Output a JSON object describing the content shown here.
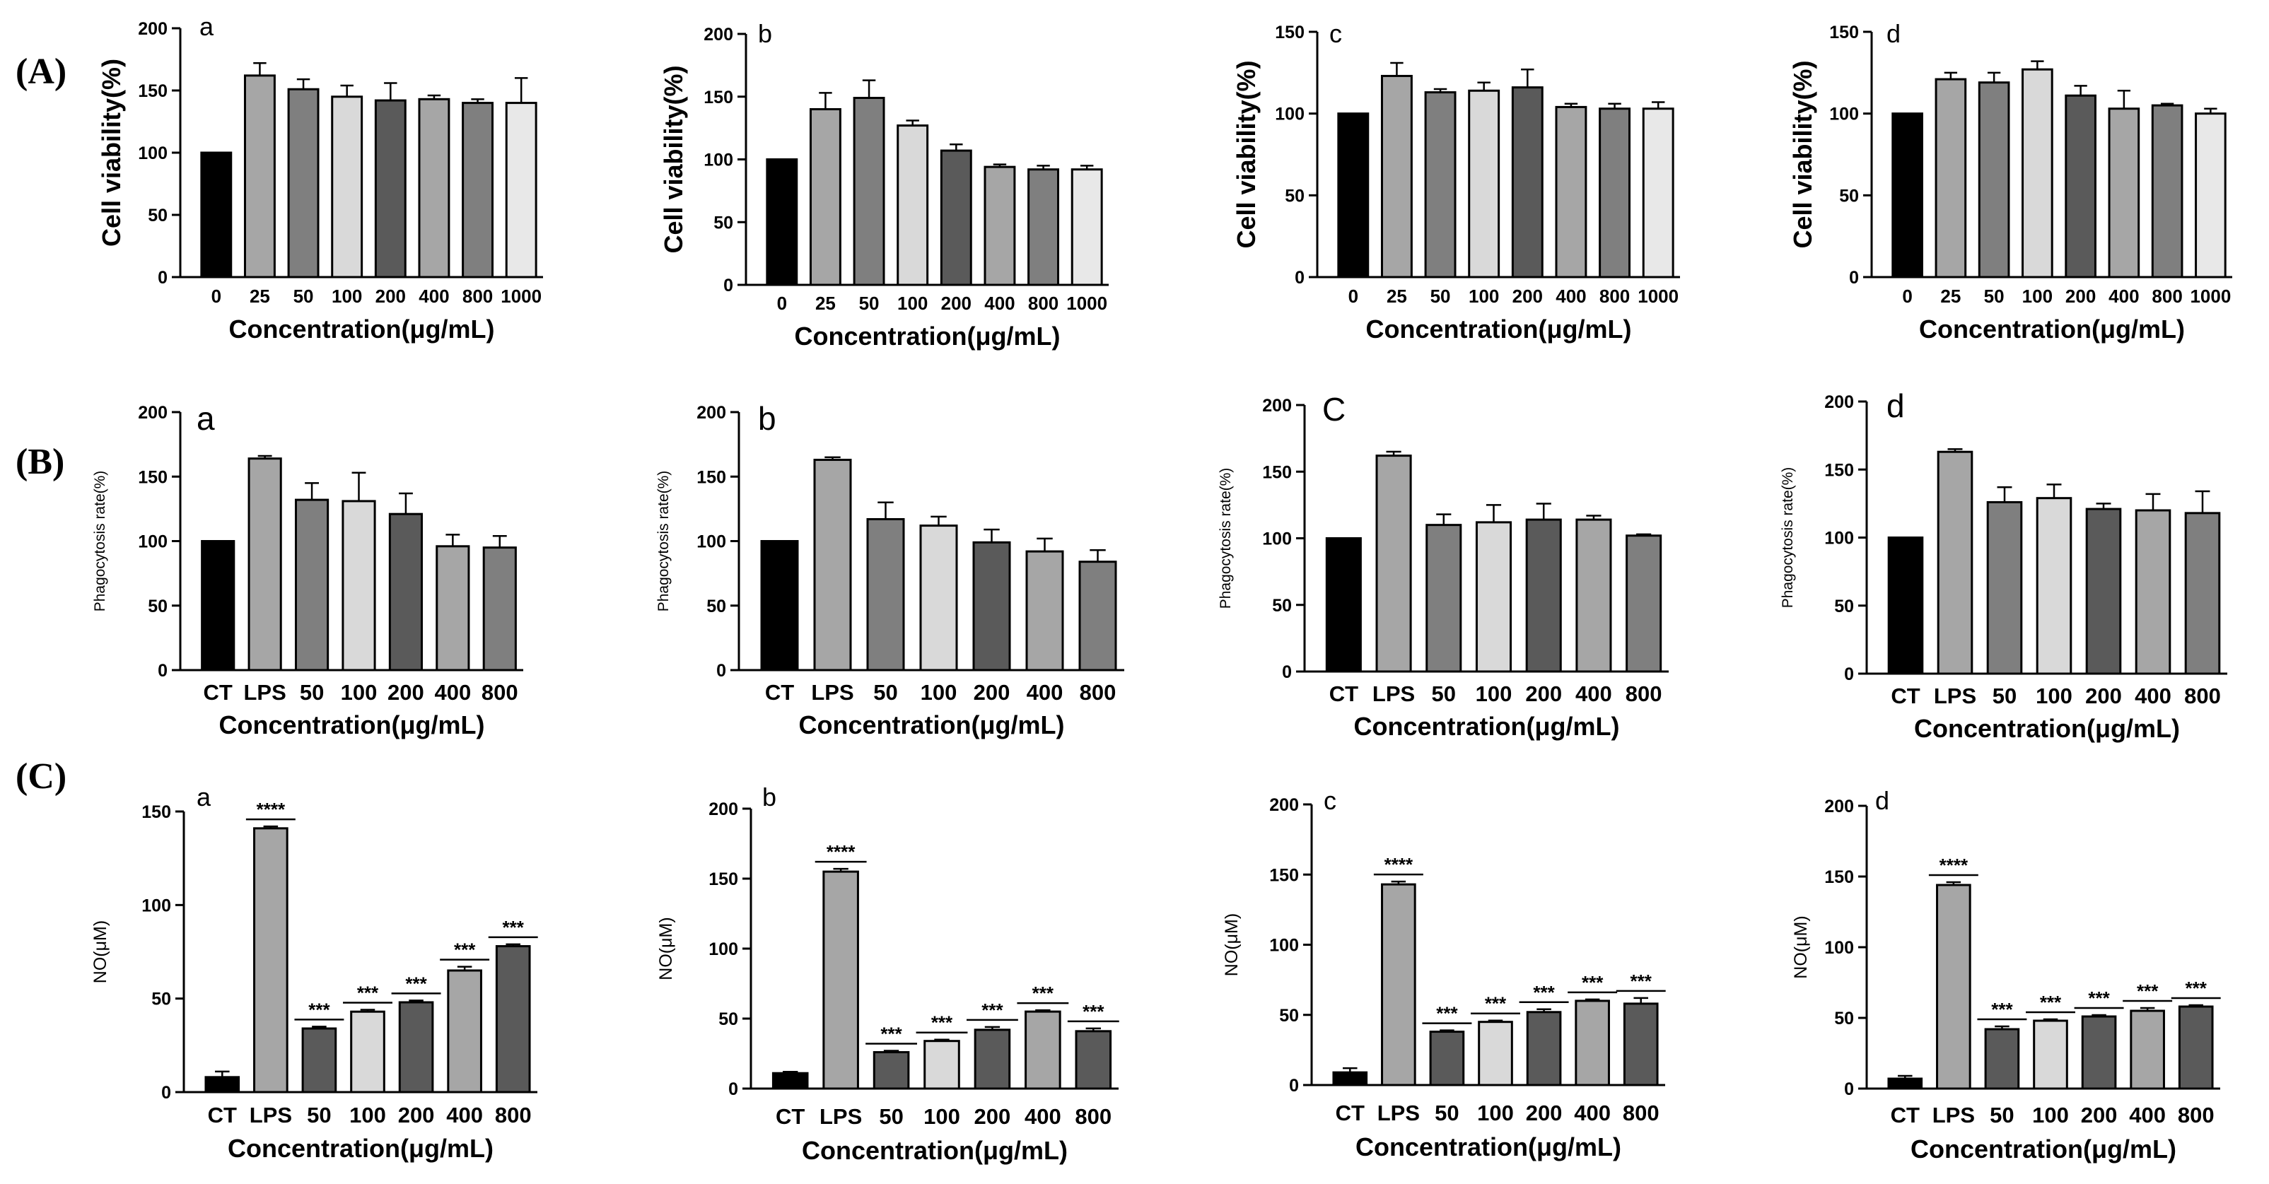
{
  "figure": {
    "row_labels": [
      "(A)",
      "(B)",
      "(C)"
    ]
  },
  "colors": {
    "black": "#000000",
    "gray_mid": "#a6a6a6",
    "gray_dark": "#7f7f7f",
    "gray_light": "#d9d9d9",
    "gray_darker": "#5a5a5a",
    "gray_pale": "#e8e8e8"
  },
  "chart_data": [
    {
      "id": "A-a",
      "type": "bar",
      "panel_label": "a",
      "ylabel": "Cell viability(%)",
      "xlabel": "Concentration(μg/mL)",
      "ylim": [
        0,
        200
      ],
      "yticks": [
        0,
        50,
        100,
        150,
        200
      ],
      "categories": [
        "0",
        "25",
        "50",
        "100",
        "200",
        "400",
        "800",
        "1000"
      ],
      "values": [
        100,
        162,
        151,
        145,
        142,
        143,
        140,
        140
      ],
      "errors": [
        0,
        10,
        8,
        9,
        14,
        3,
        3,
        20
      ],
      "colors": [
        "#000000",
        "#a6a6a6",
        "#7f7f7f",
        "#d9d9d9",
        "#5a5a5a",
        "#a6a6a6",
        "#7f7f7f",
        "#e8e8e8"
      ],
      "significance": []
    },
    {
      "id": "A-b",
      "type": "bar",
      "panel_label": "b",
      "ylabel": "Cell viability(%)",
      "xlabel": "Concentration(μg/mL)",
      "ylim": [
        0,
        200
      ],
      "yticks": [
        0,
        50,
        100,
        150,
        200
      ],
      "categories": [
        "0",
        "25",
        "50",
        "100",
        "200",
        "400",
        "800",
        "1000"
      ],
      "values": [
        100,
        140,
        149,
        127,
        107,
        94,
        92,
        92
      ],
      "errors": [
        0,
        13,
        14,
        4,
        5,
        2,
        3,
        3
      ],
      "colors": [
        "#000000",
        "#a6a6a6",
        "#7f7f7f",
        "#d9d9d9",
        "#5a5a5a",
        "#a6a6a6",
        "#7f7f7f",
        "#e8e8e8"
      ],
      "significance": []
    },
    {
      "id": "A-c",
      "type": "bar",
      "panel_label": "c",
      "ylabel": "Cell viability(%)",
      "xlabel": "Concentration(μg/mL)",
      "ylim": [
        0,
        150
      ],
      "yticks": [
        0,
        50,
        100,
        150
      ],
      "categories": [
        "0",
        "25",
        "50",
        "100",
        "200",
        "400",
        "800",
        "1000"
      ],
      "values": [
        100,
        123,
        113,
        114,
        116,
        104,
        103,
        103
      ],
      "errors": [
        0,
        8,
        2,
        5,
        11,
        2,
        3,
        4
      ],
      "colors": [
        "#000000",
        "#a6a6a6",
        "#7f7f7f",
        "#d9d9d9",
        "#5a5a5a",
        "#a6a6a6",
        "#7f7f7f",
        "#e8e8e8"
      ],
      "significance": []
    },
    {
      "id": "A-d",
      "type": "bar",
      "panel_label": "d",
      "ylabel": "Cell viability(%)",
      "xlabel": "Concentration(μg/mL)",
      "ylim": [
        0,
        150
      ],
      "yticks": [
        0,
        50,
        100,
        150
      ],
      "categories": [
        "0",
        "25",
        "50",
        "100",
        "200",
        "400",
        "800",
        "1000"
      ],
      "values": [
        100,
        121,
        119,
        127,
        111,
        103,
        105,
        100
      ],
      "errors": [
        0,
        4,
        6,
        5,
        6,
        11,
        1,
        3
      ],
      "colors": [
        "#000000",
        "#a6a6a6",
        "#7f7f7f",
        "#d9d9d9",
        "#5a5a5a",
        "#a6a6a6",
        "#7f7f7f",
        "#e8e8e8"
      ],
      "significance": []
    },
    {
      "id": "B-a",
      "type": "bar",
      "panel_label": "a",
      "ylabel": "Phagocytosis rate(%)",
      "xlabel": "Concentration(μg/mL)",
      "ylim": [
        0,
        200
      ],
      "yticks": [
        0,
        50,
        100,
        150,
        200
      ],
      "categories": [
        "CT",
        "LPS",
        "50",
        "100",
        "200",
        "400",
        "800"
      ],
      "values": [
        100,
        164,
        132,
        131,
        121,
        96,
        95
      ],
      "errors": [
        0,
        2,
        13,
        22,
        16,
        9,
        9
      ],
      "colors": [
        "#000000",
        "#a6a6a6",
        "#7f7f7f",
        "#d9d9d9",
        "#5a5a5a",
        "#a6a6a6",
        "#7f7f7f"
      ],
      "significance": []
    },
    {
      "id": "B-b",
      "type": "bar",
      "panel_label": "b",
      "ylabel": "Phagocytosis rate(%)",
      "xlabel": "Concentration(μg/mL)",
      "ylim": [
        0,
        200
      ],
      "yticks": [
        0,
        50,
        100,
        150,
        200
      ],
      "categories": [
        "CT",
        "LPS",
        "50",
        "100",
        "200",
        "400",
        "800"
      ],
      "values": [
        100,
        163,
        117,
        112,
        99,
        92,
        84
      ],
      "errors": [
        0,
        2,
        13,
        7,
        10,
        10,
        9
      ],
      "colors": [
        "#000000",
        "#a6a6a6",
        "#7f7f7f",
        "#d9d9d9",
        "#5a5a5a",
        "#a6a6a6",
        "#7f7f7f"
      ],
      "significance": []
    },
    {
      "id": "B-c",
      "type": "bar",
      "panel_label": "C",
      "ylabel": "Phagocytosis rate(%)",
      "xlabel": "Concentration(μg/mL)",
      "ylim": [
        0,
        200
      ],
      "yticks": [
        0,
        50,
        100,
        150,
        200
      ],
      "categories": [
        "CT",
        "LPS",
        "50",
        "100",
        "200",
        "400",
        "800"
      ],
      "values": [
        100,
        162,
        110,
        112,
        114,
        114,
        102
      ],
      "errors": [
        0,
        3,
        8,
        13,
        12,
        3,
        1
      ],
      "colors": [
        "#000000",
        "#a6a6a6",
        "#7f7f7f",
        "#d9d9d9",
        "#5a5a5a",
        "#a6a6a6",
        "#7f7f7f"
      ],
      "significance": []
    },
    {
      "id": "B-d",
      "type": "bar",
      "panel_label": "d",
      "ylabel": "Phagocytosis rate(%)",
      "xlabel": "Concentration(μg/mL)",
      "ylim": [
        0,
        200
      ],
      "yticks": [
        0,
        50,
        100,
        150,
        200
      ],
      "categories": [
        "CT",
        "LPS",
        "50",
        "100",
        "200",
        "400",
        "800"
      ],
      "values": [
        100,
        163,
        126,
        129,
        121,
        120,
        118
      ],
      "errors": [
        0,
        2,
        11,
        10,
        4,
        12,
        16
      ],
      "colors": [
        "#000000",
        "#a6a6a6",
        "#7f7f7f",
        "#d9d9d9",
        "#5a5a5a",
        "#a6a6a6",
        "#7f7f7f"
      ],
      "significance": []
    },
    {
      "id": "C-a",
      "type": "bar",
      "panel_label": "a",
      "ylabel": "NO(μM)",
      "xlabel": "Concentration(μg/mL)",
      "ylim": [
        0,
        150
      ],
      "yticks": [
        0,
        50,
        100,
        150
      ],
      "categories": [
        "CT",
        "LPS",
        "50",
        "100",
        "200",
        "400",
        "800"
      ],
      "values": [
        8,
        141,
        34,
        43,
        48,
        65,
        78
      ],
      "errors": [
        3,
        1,
        1,
        1,
        1,
        2,
        1
      ],
      "colors": [
        "#000000",
        "#a6a6a6",
        "#5a5a5a",
        "#d9d9d9",
        "#5a5a5a",
        "#a6a6a6",
        "#5a5a5a"
      ],
      "significance": [
        "",
        "****",
        "***",
        "***",
        "***",
        "***",
        "***"
      ]
    },
    {
      "id": "C-b",
      "type": "bar",
      "panel_label": "b",
      "ylabel": "NO(μM)",
      "xlabel": "Concentration(μg/mL)",
      "ylim": [
        0,
        200
      ],
      "yticks": [
        0,
        50,
        100,
        150,
        200
      ],
      "categories": [
        "CT",
        "LPS",
        "50",
        "100",
        "200",
        "400",
        "800"
      ],
      "values": [
        11,
        155,
        26,
        34,
        42,
        55,
        41
      ],
      "errors": [
        1,
        2,
        1,
        1,
        2,
        1,
        2
      ],
      "colors": [
        "#000000",
        "#a6a6a6",
        "#5a5a5a",
        "#d9d9d9",
        "#5a5a5a",
        "#a6a6a6",
        "#5a5a5a"
      ],
      "significance": [
        "",
        "****",
        "***",
        "***",
        "***",
        "***",
        "***"
      ]
    },
    {
      "id": "C-c",
      "type": "bar",
      "panel_label": "c",
      "ylabel": "NO(μM)",
      "xlabel": "Concentration(μg/mL)",
      "ylim": [
        0,
        200
      ],
      "yticks": [
        0,
        50,
        100,
        150,
        200
      ],
      "categories": [
        "CT",
        "LPS",
        "50",
        "100",
        "200",
        "400",
        "800"
      ],
      "values": [
        9,
        143,
        38,
        45,
        52,
        60,
        58
      ],
      "errors": [
        3,
        2,
        1,
        1,
        2,
        1,
        4
      ],
      "colors": [
        "#000000",
        "#a6a6a6",
        "#5a5a5a",
        "#d9d9d9",
        "#5a5a5a",
        "#a6a6a6",
        "#5a5a5a"
      ],
      "significance": [
        "",
        "****",
        "***",
        "***",
        "***",
        "***",
        "***"
      ]
    },
    {
      "id": "C-d",
      "type": "bar",
      "panel_label": "d",
      "ylabel": "NO(μM)",
      "xlabel": "Concentration(μg/mL)",
      "ylim": [
        0,
        200
      ],
      "yticks": [
        0,
        50,
        100,
        150,
        200
      ],
      "categories": [
        "CT",
        "LPS",
        "50",
        "100",
        "200",
        "400",
        "800"
      ],
      "values": [
        7,
        144,
        42,
        48,
        51,
        55,
        58
      ],
      "errors": [
        2,
        2,
        2,
        1,
        1,
        2,
        1
      ],
      "colors": [
        "#000000",
        "#a6a6a6",
        "#5a5a5a",
        "#d9d9d9",
        "#5a5a5a",
        "#a6a6a6",
        "#5a5a5a"
      ],
      "significance": [
        "",
        "****",
        "***",
        "***",
        "***",
        "***",
        "***"
      ]
    }
  ]
}
